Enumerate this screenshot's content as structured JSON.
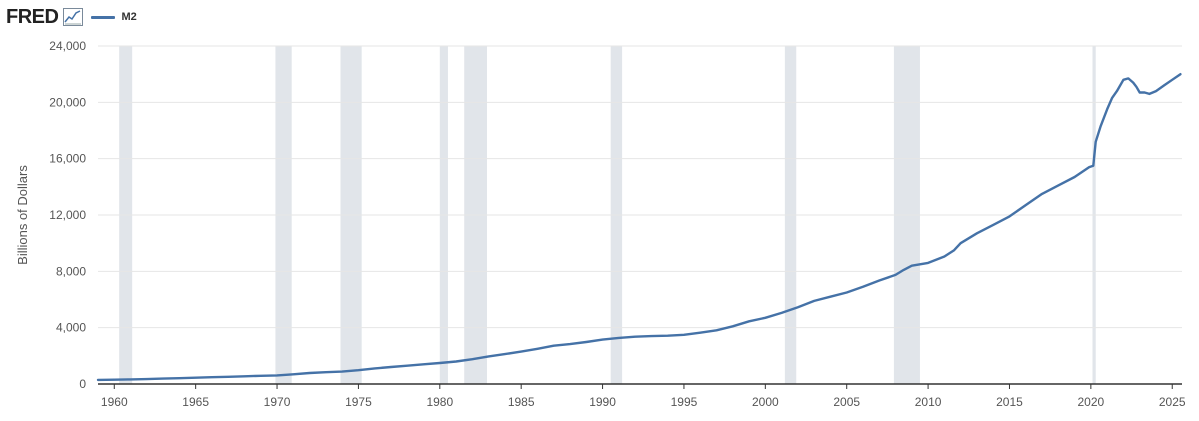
{
  "header": {
    "logo_text": "FRED",
    "logo_icon": "line-chart-icon",
    "legend_label": "M2"
  },
  "colors": {
    "series": "#4572a7",
    "recession": "#e1e5ea",
    "grid": "#e6e6e6",
    "axis_text": "#555555"
  },
  "chart_data": {
    "type": "line",
    "title": "",
    "xlabel": "",
    "ylabel": "Billions of Dollars",
    "xlim": [
      1959,
      2025.6
    ],
    "ylim": [
      0,
      24000
    ],
    "x_ticks": [
      "1960",
      "1965",
      "1970",
      "1975",
      "1980",
      "1985",
      "1990",
      "1995",
      "2000",
      "2005",
      "2010",
      "2015",
      "2020",
      "2025"
    ],
    "y_ticks": [
      "0",
      "4,000",
      "8,000",
      "12,000",
      "16,000",
      "20,000",
      "24,000"
    ],
    "grid": "horizontal",
    "legend": "top-left",
    "recessions": [
      [
        1960.3,
        1961.1
      ],
      [
        1969.9,
        1970.9
      ],
      [
        1973.9,
        1975.2
      ],
      [
        1980.0,
        1980.5
      ],
      [
        1981.5,
        1982.9
      ],
      [
        1990.5,
        1991.2
      ],
      [
        2001.2,
        2001.9
      ],
      [
        2007.9,
        2009.5
      ],
      [
        2020.1,
        2020.3
      ]
    ],
    "series": [
      {
        "name": "M2",
        "x": [
          1959,
          1960,
          1961,
          1962,
          1963,
          1964,
          1965,
          1966,
          1967,
          1968,
          1969,
          1970,
          1971,
          1972,
          1973,
          1974,
          1975,
          1976,
          1977,
          1978,
          1979,
          1980,
          1981,
          1982,
          1983,
          1984,
          1985,
          1986,
          1987,
          1988,
          1989,
          1990,
          1991,
          1992,
          1993,
          1994,
          1995,
          1996,
          1997,
          1998,
          1999,
          2000,
          2001,
          2002,
          2003,
          2004,
          2005,
          2006,
          2007,
          2008,
          2008.5,
          2009,
          2010,
          2011,
          2011.6,
          2012,
          2013,
          2014,
          2015,
          2016,
          2017,
          2018,
          2019,
          2019.9,
          2020.15,
          2020.3,
          2020.6,
          2021,
          2021.3,
          2021.6,
          2022,
          2022.3,
          2022.6,
          2022.8,
          2023,
          2023.3,
          2023.6,
          2024,
          2024.5,
          2025,
          2025.5
        ],
        "values": [
          290,
          305,
          325,
          350,
          380,
          410,
          450,
          480,
          510,
          550,
          585,
          610,
          690,
          780,
          840,
          880,
          980,
          1110,
          1210,
          1300,
          1400,
          1490,
          1600,
          1760,
          1960,
          2120,
          2300,
          2500,
          2720,
          2830,
          2980,
          3150,
          3270,
          3360,
          3400,
          3430,
          3490,
          3640,
          3810,
          4100,
          4450,
          4700,
          5050,
          5450,
          5900,
          6200,
          6500,
          6900,
          7350,
          7750,
          8100,
          8400,
          8600,
          9050,
          9500,
          10000,
          10700,
          11300,
          11900,
          12700,
          13500,
          14100,
          14700,
          15400,
          15500,
          17200,
          18300,
          19500,
          20300,
          20800,
          21600,
          21700,
          21400,
          21100,
          20700,
          20700,
          20600,
          20800,
          21200,
          21600,
          22000
        ]
      }
    ]
  }
}
